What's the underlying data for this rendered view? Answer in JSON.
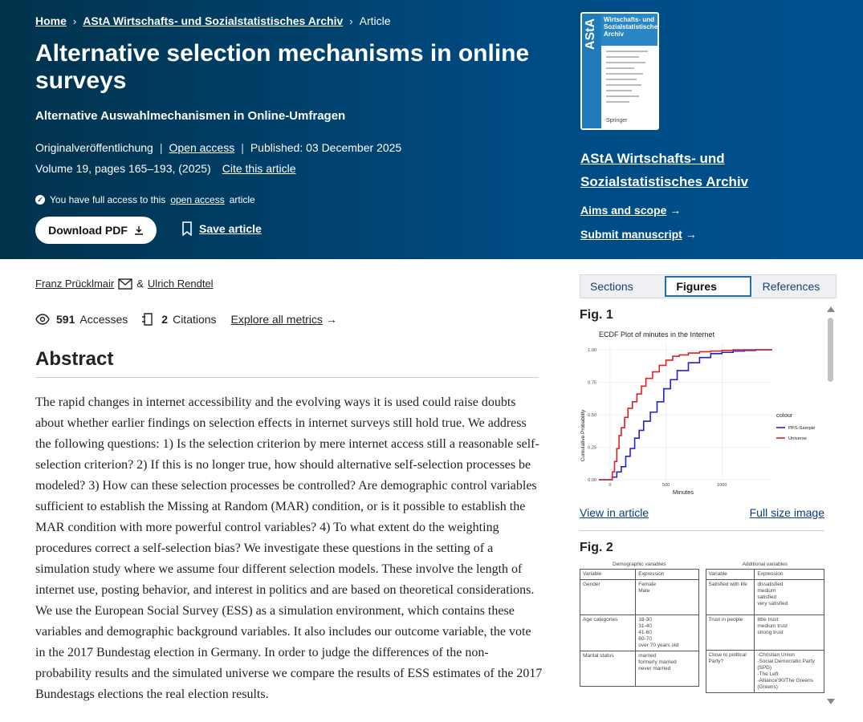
{
  "breadcrumb": {
    "home": "Home",
    "journal": "AStA Wirtschafts- und Sozialstatistisches Archiv",
    "current": "Article"
  },
  "article": {
    "title": "Alternative selection mechanisms in online surveys",
    "subtitle": "Alternative Auswahlmechanismen in Online-Umfragen",
    "type": "Originalveröffentlichung",
    "open_access": "Open access",
    "published": "Published: 03 December 2025",
    "volume": "Volume 19, pages 165–193, (2025)",
    "cite": "Cite this article",
    "access_prefix": "You have full access to this",
    "access_link": "open access",
    "access_suffix": "article",
    "download": "Download PDF",
    "save": "Save article"
  },
  "journal": {
    "name": "AStA Wirtschafts- und Sozialstatistisches Archiv",
    "aims": "Aims and scope",
    "submit": "Submit manuscript",
    "cover": {
      "label": "AStA",
      "head": "Wirtschafts- und Sozialstatistisches Archiv",
      "publisher": "Springer"
    }
  },
  "authors": {
    "a1": "Franz Prücklmair",
    "amp": "&",
    "a2": "Ulrich Rendtel"
  },
  "metrics": {
    "accesses_num": "591",
    "accesses_label": "Accesses",
    "citations_num": "2",
    "citations_label": "Citations",
    "explore": "Explore all metrics"
  },
  "abstract": {
    "heading": "Abstract",
    "text": "The rapid changes in internet accessibility and the evolving ways it is used could raise doubts about whether earlier findings on selection effects in internet surveys still hold true. We address the following questions: 1) Is the selection criterion by mere internet access still a reasonable self-selection criterion? 2) If this is no longer true, how should alternative self-selection processes be modeled? 3) How can these selection processes be controlled? Are demographic control variables sufficient to establish the Missing at Random (MAR) condition, or is it possible to establish the MAR condition with more powerful control variables? 4) To what extent do the weighting procedures correct a self-selection bias? We investigate these questions in the setting of a simulation study where we assume four different selection models. These involve the length of internet use, posting behavior, and interest in politics and are based on theoretical considerations. We use the European Social Survey (ESS) as a simulation environment, which contains these variables and demographic background variables. It also includes our outcome variable, the vote in the 2017 Bundestag election in Germany. In order to judge the differences of the non-probability results and the simulated universe we compare the results of ESS estimates of the 2017 Bundestags elections the real election results."
  },
  "tabs": [
    {
      "label": "Sections"
    },
    {
      "label": "Figures"
    },
    {
      "label": "References"
    }
  ],
  "figures": {
    "fig1": {
      "label": "Fig. 1",
      "view": "View in article",
      "full": "Full size image"
    },
    "fig2": {
      "label": "Fig. 2",
      "left_caption": "Demographic variables",
      "right_caption": "Additional variables",
      "col_var": "Variable",
      "col_expr": "Expression",
      "left_rows": [
        {
          "var": "Gender",
          "expr": "Female\nMale"
        },
        {
          "var": "Age categories",
          "expr": "18-30\n31-40\n41-60\n60-70\nover 70 years old"
        },
        {
          "var": "Marital status",
          "expr": "married\nformerly married\nnever married"
        }
      ],
      "right_rows": [
        {
          "var": "Satisfied with life",
          "expr": "dissatisfied\nmedium\nsatisfied\nvery satisfied"
        },
        {
          "var": "Trust in people",
          "expr": "little trust\nmedium trust\nstrong trust"
        },
        {
          "var": "Close to political Party?",
          "expr": "-Christian Union\n-Social Democratic Party (SPD)\n-The Left\n-Alliance'90/The Greens (Greens)"
        }
      ]
    }
  },
  "chart_data": {
    "type": "line",
    "title": "ECDF Plot of minutes in the Internet",
    "xlabel": "Minutes",
    "ylabel": "Cumulative Probability",
    "xlim": [
      -100,
      1450
    ],
    "ylim": [
      0,
      1
    ],
    "x_ticks": [
      "0",
      "500",
      "1000"
    ],
    "y_ticks": [
      "0.00",
      "0.25",
      "0.50",
      "0.75",
      "1.00"
    ],
    "legend_title": "colour",
    "legend_position": "right",
    "series": [
      {
        "name": "PPS-Sample",
        "color": "#2222cc",
        "x": [
          -100,
          0,
          20,
          60,
          100,
          140,
          180,
          220,
          260,
          300,
          360,
          420,
          480,
          540,
          600,
          700,
          800,
          900,
          1000,
          1100,
          1200,
          1300,
          1450
        ],
        "y": [
          0,
          0,
          0.02,
          0.06,
          0.1,
          0.18,
          0.24,
          0.32,
          0.38,
          0.45,
          0.52,
          0.6,
          0.7,
          0.77,
          0.84,
          0.9,
          0.94,
          0.97,
          0.98,
          0.99,
          0.995,
          1.0,
          1.0
        ]
      },
      {
        "name": "Universe",
        "color": "#dd2222",
        "x": [
          -100,
          0,
          20,
          40,
          60,
          80,
          100,
          130,
          160,
          200,
          240,
          280,
          320,
          380,
          440,
          500,
          560,
          620,
          700,
          800,
          900,
          1000,
          1100,
          1200,
          1450
        ],
        "y": [
          0,
          0,
          0.06,
          0.14,
          0.24,
          0.34,
          0.4,
          0.48,
          0.55,
          0.6,
          0.66,
          0.72,
          0.78,
          0.83,
          0.88,
          0.92,
          0.95,
          0.96,
          0.975,
          0.985,
          0.99,
          0.995,
          1.0,
          1.0,
          1.0
        ]
      }
    ]
  }
}
